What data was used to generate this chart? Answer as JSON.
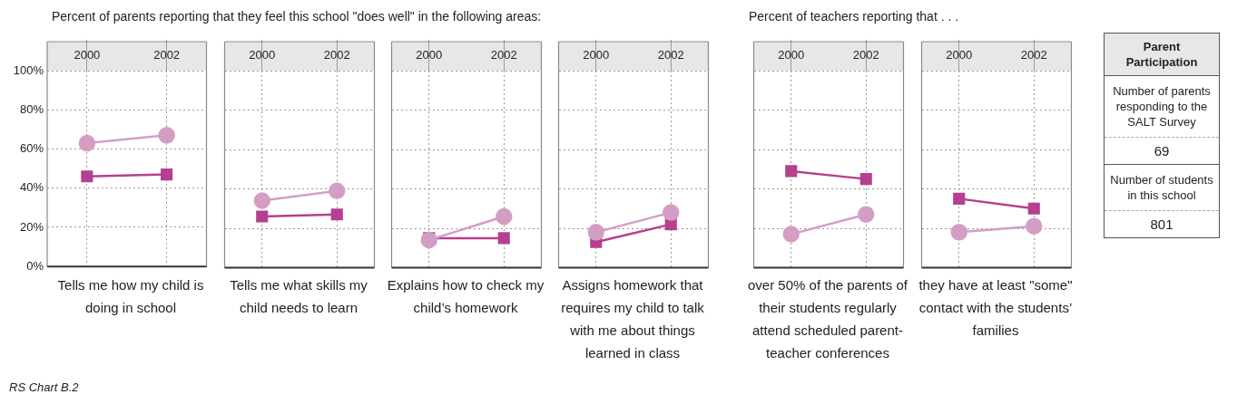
{
  "chart_data": [
    {
      "type": "line",
      "title": "Percent of parents reporting that they feel this school \"does well\" in the following areas:",
      "categories": [
        "2000",
        "2002"
      ],
      "xlabel": "Tells me how my child is doing in school",
      "ylim": [
        0,
        100
      ],
      "yticks": [
        {
          "value": 0,
          "label": "0%"
        },
        {
          "value": 20,
          "label": "20%"
        },
        {
          "value": 40,
          "label": "40%"
        },
        {
          "value": 60,
          "label": "60%"
        },
        {
          "value": 80,
          "label": "80%"
        },
        {
          "value": 100,
          "label": "100%"
        }
      ],
      "grid": true,
      "annotations": [
        "RS Chart B.2"
      ],
      "series": [
        {
          "color": "#d49ec4",
          "marker": "circle",
          "values": [
            63,
            67
          ]
        },
        {
          "color": "#b5408f",
          "marker": "square",
          "values": [
            46,
            47
          ]
        }
      ]
    },
    {
      "type": "line",
      "categories": [
        "2000",
        "2002"
      ],
      "xlabel": "Tells me what skills my child needs to learn",
      "ylim": [
        0,
        100
      ],
      "yticks": [
        0,
        20,
        40,
        60,
        80,
        100
      ],
      "grid": true,
      "tick_labels": "x",
      "series": [
        {
          "color": "#d49ec4",
          "marker": "circle",
          "values": [
            34,
            39
          ]
        },
        {
          "color": "#b5408f",
          "marker": "square",
          "values": [
            26,
            27
          ]
        }
      ]
    },
    {
      "type": "line",
      "categories": [
        "2000",
        "2002"
      ],
      "xlabel": "Explains how to check my child’s homework",
      "ylim": [
        0,
        100
      ],
      "yticks": [
        0,
        20,
        40,
        60,
        80,
        100
      ],
      "grid": true,
      "tick_labels": "x",
      "series": [
        {
          "color": "#d49ec4",
          "marker": "circle",
          "values": [
            14,
            26
          ]
        },
        {
          "color": "#b5408f",
          "marker": "square",
          "values": [
            15,
            15
          ]
        }
      ]
    },
    {
      "type": "line",
      "categories": [
        "2000",
        "2002"
      ],
      "xlabel": "Assigns homework that requires my child to talk with me about things learned in class",
      "ylim": [
        0,
        100
      ],
      "yticks": [
        0,
        20,
        40,
        60,
        80,
        100
      ],
      "grid": true,
      "tick_labels": "x",
      "series": [
        {
          "color": "#d49ec4",
          "marker": "circle",
          "values": [
            18,
            28
          ]
        },
        {
          "color": "#b5408f",
          "marker": "square",
          "values": [
            13,
            22
          ]
        }
      ]
    },
    {
      "type": "line",
      "title": "Percent of teachers reporting that . . .",
      "categories": [
        "2000",
        "2002"
      ],
      "xlabel": "over 50% of the parents of their students regularly attend scheduled parent-teacher conferences",
      "ylim": [
        0,
        100
      ],
      "yticks": [
        0,
        20,
        40,
        60,
        80,
        100
      ],
      "grid": true,
      "tick_labels": "x",
      "series": [
        {
          "color": "#d49ec4",
          "marker": "circle",
          "values": [
            17,
            27
          ]
        },
        {
          "color": "#b5408f",
          "marker": "square",
          "values": [
            49,
            45
          ]
        }
      ]
    },
    {
      "type": "line",
      "categories": [
        "2000",
        "2002"
      ],
      "xlabel": "they have at least \"some\" contact with the students’ families",
      "ylim": [
        0,
        100
      ],
      "yticks": [
        0,
        20,
        40,
        60,
        80,
        100
      ],
      "grid": true,
      "tick_labels": "x",
      "series": [
        {
          "color": "#d49ec4",
          "marker": "circle",
          "values": [
            18,
            21
          ]
        },
        {
          "color": "#b5408f",
          "marker": "square",
          "values": [
            35,
            30
          ]
        }
      ]
    },
    {
      "type": "other",
      "title": "Parent Participation",
      "annotations": [
        "Number of parents responding to the SALT Survey",
        "69",
        "Number of students in this school",
        "801"
      ]
    }
  ]
}
